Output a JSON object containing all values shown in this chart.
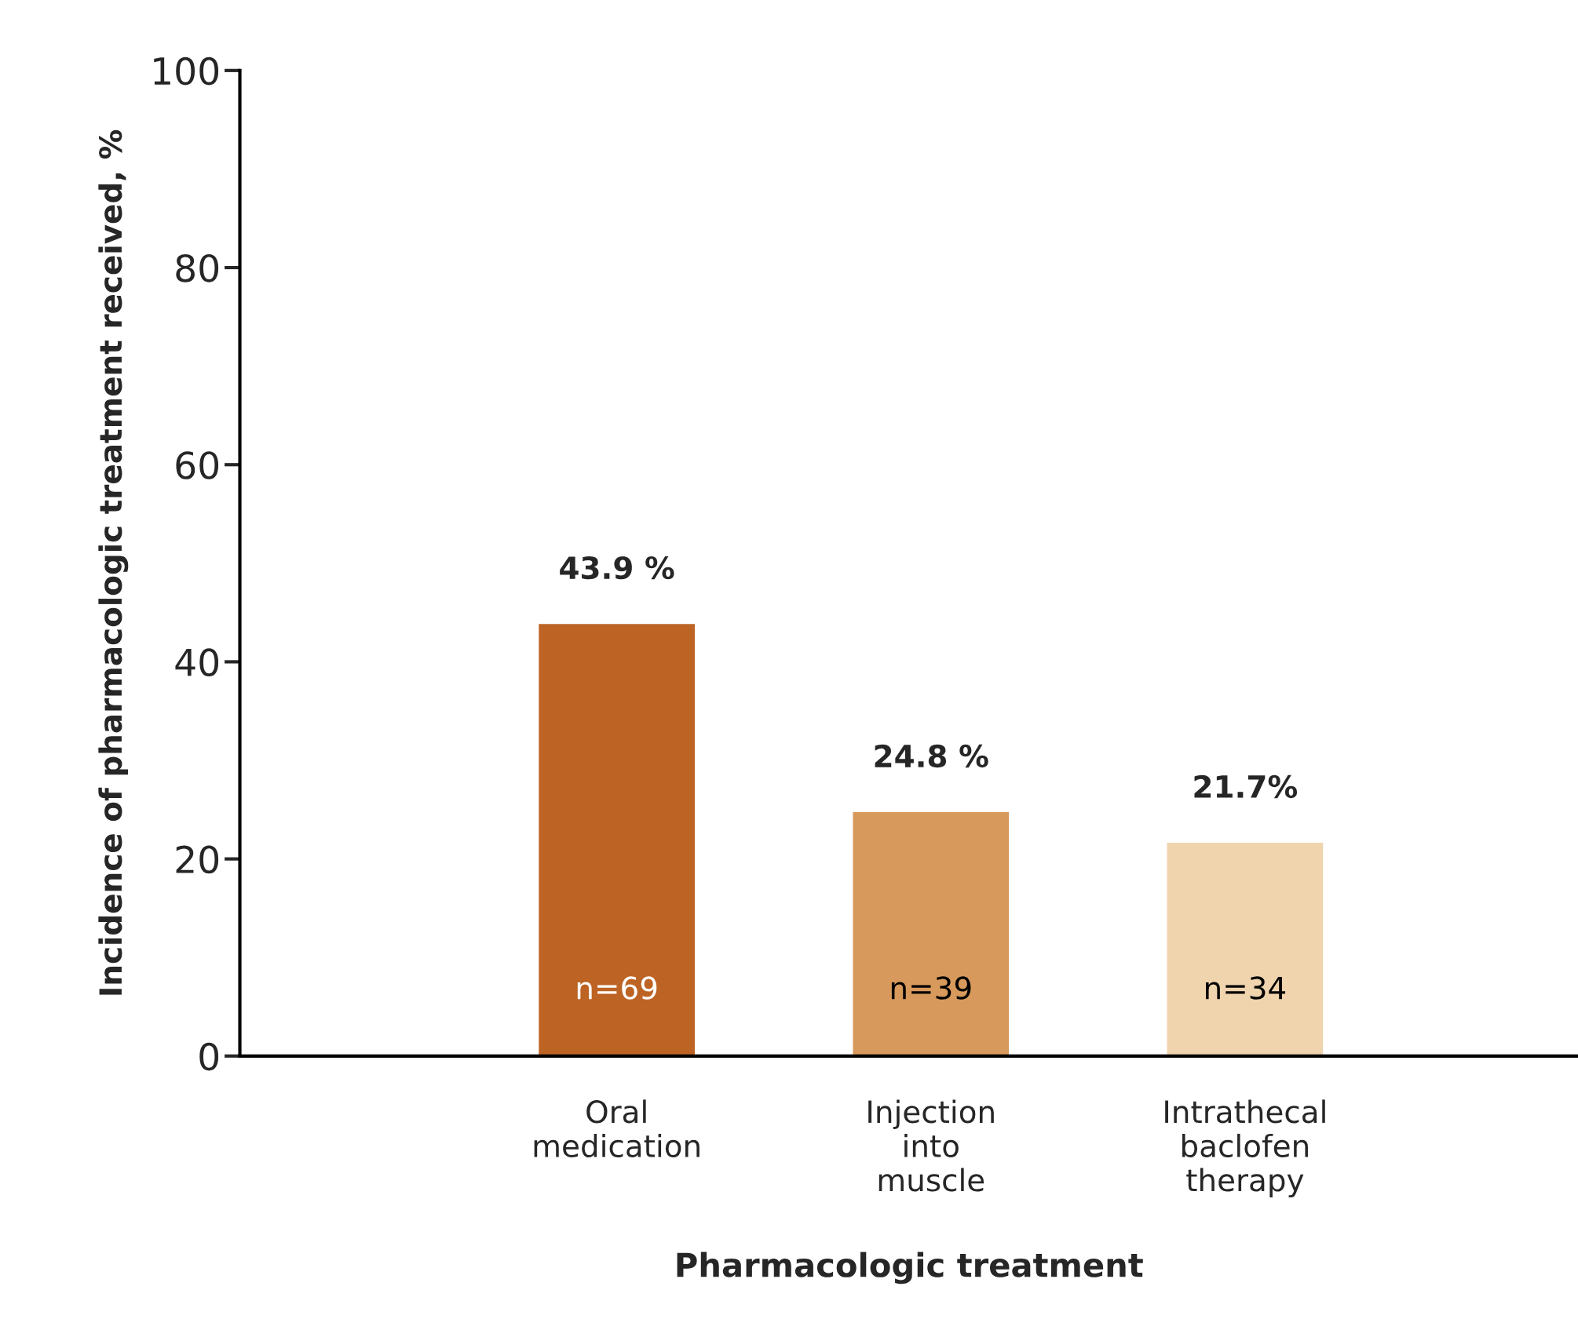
{
  "chart_data": {
    "type": "bar",
    "xlabel": "Pharmacologic treatment",
    "ylabel": "Incidence of pharmacologic treatment received, %",
    "categories": [
      "Oral\nmedication",
      "Injection\ninto\nmuscle",
      "Intrathecal\nbaclofen\ntherapy"
    ],
    "values": [
      43.9,
      24.8,
      21.7
    ],
    "colors": [
      "#bd6425",
      "#d89a5c",
      "#f0d4ae"
    ],
    "value_labels": [
      "43.9 %",
      "24.8 %",
      "21.7%"
    ],
    "annotations": [
      "n=69",
      "n=39",
      "n=34"
    ],
    "ylim": [
      0,
      100
    ],
    "yticks": [
      0,
      20,
      40,
      60,
      80,
      100
    ],
    "grid": false,
    "legend": false
  }
}
